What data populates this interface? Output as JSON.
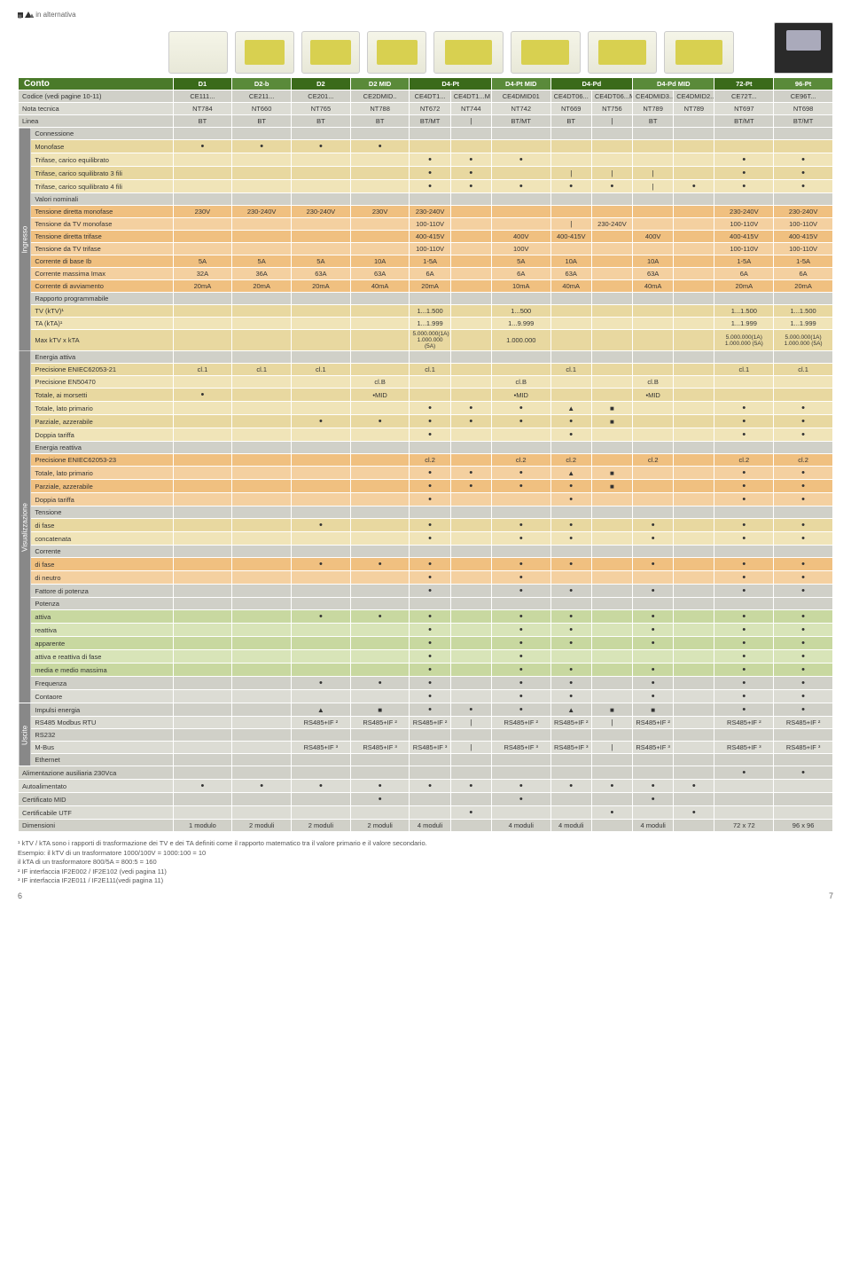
{
  "legend": "in alternativa",
  "title": "Conto",
  "rowHeaders": {
    "codice": "Codice (vedi pagine 10-11)",
    "nota": "Nota tecnica",
    "linea": "Linea",
    "connessione": "Connessione",
    "monofase": "Monofase",
    "trifeq": "Trifase, carico equilibrato",
    "trif3": "Trifase, carico squilibrato 3 fili",
    "trif4": "Trifase, carico squilibrato 4 fili",
    "valori": "Valori nominali",
    "tdm": "Tensione diretta monofase",
    "tvm": "Tensione da TV monofase",
    "tdt": "Tensione diretta trifase",
    "tvt": "Tensione da TV trifase",
    "cib": "Corrente di base Ib",
    "cmi": "Corrente massima Imax",
    "cda": "Corrente di avviamento",
    "rapporto": "Rapporto programmabile",
    "tvk": "TV (kTV)¹",
    "tak": "TA (kTA)¹",
    "mkk": "Max kTV x kTA",
    "eatt": "Energia attiva",
    "pe21": "Precisione ENIEC62053-21",
    "pe50": "Precisione EN50470",
    "tam": "Totale, ai morsetti",
    "tlp": "Totale, lato primario",
    "paz": "Parziale, azzerabile",
    "dt": "Doppia tariffa",
    "erea": "Energia reattiva",
    "pe23": "Precisione ENIEC62053-23",
    "tlp2": "Totale, lato primario",
    "paz2": "Parziale, azzerabile",
    "dt2": "Doppia tariffa",
    "tens": "Tensione",
    "df": "di fase",
    "conc": "concatenata",
    "corr": "Corrente",
    "df2": "di fase",
    "dn": "di neutro",
    "fdp": "Fattore di potenza",
    "pot": "Potenza",
    "att": "attiva",
    "rea": "reattiva",
    "app": "apparente",
    "arf": "attiva e reattiva di fase",
    "mmm": "media e medio massima",
    "freq": "Frequenza",
    "cont": "Contaore",
    "impe": "Impulsi energia",
    "rs485": "RS485 Modbus RTU",
    "rs232": "RS232",
    "mbus": "M-Bus",
    "eth": "Ethernet",
    "aaux": "Alimentazione ausiliaria 230Vca",
    "autoa": "Autoalimentato",
    "cmid": "Certificato MID",
    "cutf": "Certificabile UTF",
    "dim": "Dimensioni"
  },
  "catLabels": {
    "ingresso": "Ingresso",
    "visual": "Visualizzazione",
    "uscite": "Uscite"
  },
  "cols": [
    {
      "h": "D1",
      "cod": "CE111...",
      "nt": "NT784",
      "lin": "BT"
    },
    {
      "h": "D2-b",
      "cod": "CE211...",
      "nt": "NT660",
      "lin": "BT"
    },
    {
      "h": "D2",
      "cod": "CE201...",
      "nt": "NT765",
      "lin": "BT"
    },
    {
      "h": "D2 MID",
      "cod": "CE2DMID..",
      "nt": "NT788",
      "lin": "BT"
    },
    {
      "h": "D4-Pt",
      "cod": "CE4DT1...",
      "nt": "NT672",
      "lin": "BT/MT",
      "cod2": "CE4DT1...M",
      "nt2": "NT744",
      "lin2": "|"
    },
    {
      "h": "D4-Pt MID",
      "cod": "CE4DMID01",
      "nt": "NT742",
      "lin": "BT/MT"
    },
    {
      "h": "D4-Pd",
      "cod": "CE4DT06...",
      "nt": "NT669",
      "lin": "BT",
      "cod2": "CE4DT06...M",
      "nt2": "NT756",
      "lin2": "|"
    },
    {
      "h": "D4-Pd MID",
      "cod": "CE4DMID3..",
      "nt": "NT789",
      "lin": "BT",
      "cod2": "CE4DMID2..",
      "nt2": "NT789",
      "lin2": ""
    },
    {
      "h": "72-Pt",
      "cod": "CE72T...",
      "nt": "NT697",
      "lin": "BT/MT"
    },
    {
      "h": "96-Pt",
      "cod": "CE96T...",
      "nt": "NT698",
      "lin": "BT/MT"
    }
  ],
  "data": {
    "monofase": [
      "•",
      "•",
      "•",
      "•",
      "",
      "",
      "",
      "",
      "",
      "",
      "",
      "",
      ""
    ],
    "trifeq": [
      "",
      "",
      "",
      "",
      "•",
      "•",
      "•",
      "",
      "",
      "",
      "",
      "•",
      "•"
    ],
    "trif3": [
      "",
      "",
      "",
      "",
      "•",
      "•",
      "",
      "|",
      "|",
      "|",
      "",
      "•",
      "•"
    ],
    "trif4": [
      "",
      "",
      "",
      "",
      "•",
      "•",
      "•",
      "•",
      "•",
      "|",
      "•",
      "•",
      "•"
    ],
    "tdm": [
      "230V",
      "230-240V",
      "230-240V",
      "230V",
      "230-240V",
      "",
      "",
      "",
      "",
      "",
      "",
      "230-240V",
      "230-240V"
    ],
    "tvm": [
      "",
      "",
      "",
      "",
      "100-110V",
      "",
      "",
      "|",
      "230-240V",
      "",
      "",
      "100-110V",
      "100-110V"
    ],
    "tdt": [
      "",
      "",
      "",
      "",
      "400-415V",
      "",
      "400V",
      "400-415V",
      "",
      "400V",
      "",
      "400-415V",
      "400-415V"
    ],
    "tvt": [
      "",
      "",
      "",
      "",
      "100-110V",
      "",
      "100V",
      "",
      "",
      "",
      "",
      "100-110V",
      "100-110V"
    ],
    "cib": [
      "5A",
      "5A",
      "5A",
      "10A",
      "1-5A",
      "",
      "5A",
      "10A",
      "",
      "10A",
      "",
      "1-5A",
      "1-5A"
    ],
    "cmi": [
      "32A",
      "36A",
      "63A",
      "63A",
      "6A",
      "",
      "6A",
      "63A",
      "",
      "63A",
      "",
      "6A",
      "6A"
    ],
    "cda": [
      "20mA",
      "20mA",
      "20mA",
      "40mA",
      "20mA",
      "",
      "10mA",
      "40mA",
      "",
      "40mA",
      "",
      "20mA",
      "20mA"
    ],
    "tvk": [
      "",
      "",
      "",
      "",
      "1...1.500",
      "",
      "1...500",
      "",
      "",
      "",
      "",
      "1...1.500",
      "1...1.500"
    ],
    "tak": [
      "",
      "",
      "",
      "",
      "1...1.999",
      "",
      "1...9.999",
      "",
      "",
      "",
      "",
      "1...1.999",
      "1...1.999"
    ],
    "mkk": [
      "",
      "",
      "",
      "",
      "5.000.000(1A)\n1.000.000 (5A)",
      "",
      "1.000.000",
      "",
      "",
      "",
      "",
      "5.000.000(1A)\n1.000.000 (5A)",
      "5.000.000(1A)\n1.000.000 (5A)"
    ],
    "pe21": [
      "cl.1",
      "cl.1",
      "cl.1",
      "",
      "cl.1",
      "",
      "",
      "cl.1",
      "",
      "",
      "",
      "cl.1",
      "cl.1"
    ],
    "pe50": [
      "",
      "",
      "",
      "cl.B",
      "",
      "",
      "cl.B",
      "",
      "",
      "cl.B",
      "",
      "",
      ""
    ],
    "tam": [
      "•",
      "",
      "",
      "•MID",
      "",
      "",
      "•MID",
      "",
      "",
      "•MID",
      "",
      "",
      ""
    ],
    "tlp": [
      "",
      "",
      "",
      "",
      "•",
      "•",
      "•",
      "▲",
      "■",
      "",
      "",
      "•",
      "•"
    ],
    "paz": [
      "",
      "",
      "•",
      "•",
      "•",
      "•",
      "•",
      "•",
      "■",
      "",
      "",
      "•",
      "•"
    ],
    "dt": [
      "",
      "",
      "",
      "",
      "•",
      "",
      "",
      "•",
      "",
      "",
      "",
      "•",
      "•"
    ],
    "pe23": [
      "",
      "",
      "",
      "",
      "cl.2",
      "",
      "cl.2",
      "cl.2",
      "",
      "cl.2",
      "",
      "cl.2",
      "cl.2"
    ],
    "tlp2": [
      "",
      "",
      "",
      "",
      "•",
      "•",
      "•",
      "▲",
      "■",
      "",
      "",
      "•",
      "•"
    ],
    "paz2": [
      "",
      "",
      "",
      "",
      "•",
      "•",
      "•",
      "•",
      "■",
      "",
      "",
      "•",
      "•"
    ],
    "dt2": [
      "",
      "",
      "",
      "",
      "•",
      "",
      "",
      "•",
      "",
      "",
      "",
      "•",
      "•"
    ],
    "df": [
      "",
      "",
      "•",
      "",
      "•",
      "",
      "•",
      "•",
      "",
      "•",
      "",
      "•",
      "•"
    ],
    "conc": [
      "",
      "",
      "",
      "",
      "•",
      "",
      "•",
      "•",
      "",
      "•",
      "",
      "•",
      "•"
    ],
    "df2": [
      "",
      "",
      "•",
      "•",
      "•",
      "",
      "•",
      "•",
      "",
      "•",
      "",
      "•",
      "•"
    ],
    "dn": [
      "",
      "",
      "",
      "",
      "•",
      "",
      "•",
      "",
      "",
      "",
      "",
      "•",
      "•"
    ],
    "fdp": [
      "",
      "",
      "",
      "",
      "•",
      "",
      "•",
      "•",
      "",
      "•",
      "",
      "•",
      "•"
    ],
    "att": [
      "",
      "",
      "•",
      "•",
      "•",
      "",
      "•",
      "•",
      "",
      "•",
      "",
      "•",
      "•"
    ],
    "rea": [
      "",
      "",
      "",
      "",
      "•",
      "",
      "•",
      "•",
      "",
      "•",
      "",
      "•",
      "•"
    ],
    "app": [
      "",
      "",
      "",
      "",
      "•",
      "",
      "•",
      "•",
      "",
      "•",
      "",
      "•",
      "•"
    ],
    "arf": [
      "",
      "",
      "",
      "",
      "•",
      "",
      "•",
      "",
      "",
      "",
      "",
      "•",
      "•"
    ],
    "mmm": [
      "",
      "",
      "",
      "",
      "•",
      "",
      "•",
      "•",
      "",
      "•",
      "",
      "•",
      "•"
    ],
    "freq": [
      "",
      "",
      "•",
      "•",
      "•",
      "",
      "•",
      "•",
      "",
      "•",
      "",
      "•",
      "•"
    ],
    "cont": [
      "",
      "",
      "",
      "",
      "•",
      "",
      "•",
      "•",
      "",
      "•",
      "",
      "•",
      "•"
    ],
    "impe": [
      "",
      "",
      "▲",
      "■",
      "•",
      "•",
      "•",
      "▲",
      "■",
      "■",
      "",
      "•",
      "•"
    ],
    "rs485": [
      "",
      "",
      "RS485+IF ²",
      "RS485+IF ²",
      "RS485+IF ²",
      "|",
      "RS485+IF ²",
      "RS485+IF ²",
      "|",
      "RS485+IF ²",
      "",
      "RS485+IF ²",
      "RS485+IF ²"
    ],
    "rs232": [
      "",
      "",
      "",
      "",
      "",
      "",
      "",
      "",
      "",
      "",
      "",
      "",
      ""
    ],
    "mbus": [
      "",
      "",
      "RS485+IF ³",
      "RS485+IF ³",
      "RS485+IF ³",
      "|",
      "RS485+IF ³",
      "RS485+IF ³",
      "|",
      "RS485+IF ³",
      "",
      "RS485+IF ³",
      "RS485+IF ³"
    ],
    "eth": [
      "",
      "",
      "",
      "",
      "",
      "",
      "",
      "",
      "",
      "",
      "",
      "",
      ""
    ],
    "aaux": [
      "",
      "",
      "",
      "",
      "",
      "",
      "",
      "",
      "",
      "",
      "",
      "•",
      "•"
    ],
    "autoa": [
      "•",
      "•",
      "•",
      "•",
      "•",
      "•",
      "•",
      "•",
      "•",
      "•",
      "•",
      "",
      ""
    ],
    "cmid": [
      "",
      "",
      "",
      "•",
      "",
      "",
      "•",
      "",
      "",
      "•",
      "",
      "",
      ""
    ],
    "cutf": [
      "",
      "",
      "",
      "",
      "",
      "•",
      "",
      "",
      "•",
      "",
      "•",
      "",
      ""
    ],
    "dim": [
      "1 modulo",
      "2 moduli",
      "2 moduli",
      "2 moduli",
      "4 moduli",
      "",
      "4 moduli",
      "4 moduli",
      "",
      "4 moduli",
      "",
      "72 x 72",
      "96 x 96"
    ]
  },
  "footnotes": [
    "¹  kTV / kTA sono i rapporti di trasformazione dei TV e dei TA definiti come il rapporto matematico tra il valore primario e il valore secondario.",
    "   Esempio: il kTV di un trasformatore 1000/100V = 1000:100 = 10",
    "                  il kTA di un trasformatore 800/5A = 800:5 = 160",
    "²  IF interfaccia IF2E002 / IF2E102 (vedi pagina 11)",
    "³  IF interfaccia IF2E011 / IF2E111(vedi pagina 11)"
  ],
  "pageL": "6",
  "pageR": "7"
}
